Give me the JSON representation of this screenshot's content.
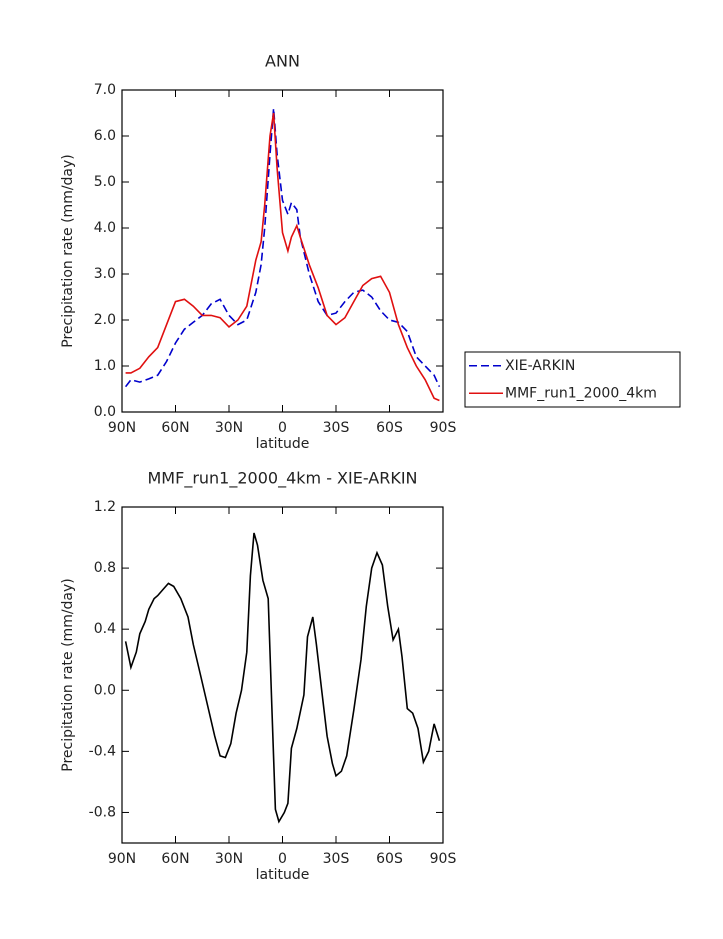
{
  "chart_data": [
    {
      "type": "line",
      "title": "ANN",
      "xlabel": "latitude",
      "ylabel": "Precipitation rate (mm/day)",
      "x": [
        88,
        85,
        80,
        75,
        70,
        65,
        60,
        55,
        50,
        45,
        40,
        35,
        30,
        25,
        20,
        15,
        12,
        10,
        7,
        5,
        3,
        0,
        -3,
        -5,
        -8,
        -10,
        -15,
        -20,
        -25,
        -30,
        -35,
        -40,
        -45,
        -50,
        -55,
        -60,
        -65,
        -70,
        -75,
        -80,
        -85,
        -88
      ],
      "series": [
        {
          "name": "XIE-ARKIN",
          "color": "#0000cc",
          "dash": true,
          "values": [
            0.55,
            0.7,
            0.65,
            0.72,
            0.8,
            1.1,
            1.5,
            1.8,
            1.95,
            2.1,
            2.35,
            2.45,
            2.1,
            1.9,
            2.0,
            2.6,
            3.2,
            4.0,
            5.6,
            6.6,
            5.6,
            4.6,
            4.3,
            4.55,
            4.4,
            3.8,
            3.0,
            2.4,
            2.1,
            2.15,
            2.4,
            2.6,
            2.65,
            2.5,
            2.2,
            2.0,
            1.95,
            1.75,
            1.2,
            1.0,
            0.8,
            0.55
          ]
        },
        {
          "name": "MMF_run1_2000_4km",
          "color": "#e01010",
          "dash": false,
          "values": [
            0.85,
            0.85,
            0.95,
            1.2,
            1.4,
            1.9,
            2.4,
            2.45,
            2.3,
            2.1,
            2.1,
            2.05,
            1.85,
            2.0,
            2.3,
            3.3,
            3.7,
            4.5,
            6.0,
            6.5,
            5.3,
            3.9,
            3.5,
            3.8,
            4.05,
            3.8,
            3.2,
            2.7,
            2.1,
            1.9,
            2.05,
            2.4,
            2.75,
            2.9,
            2.95,
            2.6,
            1.9,
            1.4,
            1.0,
            0.7,
            0.3,
            0.25
          ]
        }
      ],
      "xlim": [
        90,
        -90
      ],
      "xticks": [
        {
          "value": 90,
          "label": "90N"
        },
        {
          "value": 60,
          "label": "60N"
        },
        {
          "value": 30,
          "label": "30N"
        },
        0,
        {
          "value": -30,
          "label": "30S"
        },
        {
          "value": -60,
          "label": "60S"
        },
        {
          "value": -90,
          "label": "90S"
        }
      ],
      "ylim": [
        0,
        7
      ],
      "yticks": [
        {
          "value": 0,
          "label": "0.0"
        },
        {
          "value": 1,
          "label": "1.0"
        },
        {
          "value": 2,
          "label": "2.0"
        },
        {
          "value": 3,
          "label": "3.0"
        },
        {
          "value": 4,
          "label": "4.0"
        },
        {
          "value": 5,
          "label": "5.0"
        },
        {
          "value": 6,
          "label": "6.0"
        },
        {
          "value": 7,
          "label": "7.0"
        }
      ],
      "legend": "right"
    },
    {
      "type": "line",
      "title": "MMF_run1_2000_4km - XIE-ARKIN",
      "xlabel": "latitude",
      "ylabel": "Precipitation rate (mm/day)",
      "x": [
        88,
        85,
        82,
        80,
        77,
        75,
        72,
        70,
        67,
        64,
        61,
        57,
        53,
        50,
        46,
        42,
        38,
        35,
        32,
        29,
        26,
        23,
        20,
        18,
        16,
        14,
        11,
        8,
        6,
        4,
        2,
        -1,
        -3,
        -5,
        -8,
        -12,
        -14,
        -17,
        -19,
        -22,
        -25,
        -28,
        -30,
        -33,
        -36,
        -40,
        -44,
        -47,
        -50,
        -53,
        -56,
        -59,
        -62,
        -65,
        -67,
        -70,
        -73,
        -76,
        -79,
        -82,
        -85,
        -88
      ],
      "series": [
        {
          "name": "MMF_run1_2000_4km - XIE-ARKIN",
          "color": "#000000",
          "dash": false,
          "values": [
            0.32,
            0.15,
            0.25,
            0.37,
            0.45,
            0.53,
            0.6,
            0.62,
            0.66,
            0.7,
            0.68,
            0.6,
            0.48,
            0.3,
            0.1,
            -0.1,
            -0.3,
            -0.43,
            -0.44,
            -0.35,
            -0.15,
            0.0,
            0.25,
            0.75,
            1.03,
            0.95,
            0.72,
            0.6,
            -0.1,
            -0.78,
            -0.86,
            -0.8,
            -0.74,
            -0.38,
            -0.25,
            -0.03,
            0.35,
            0.48,
            0.3,
            0.0,
            -0.3,
            -0.48,
            -0.56,
            -0.53,
            -0.43,
            -0.13,
            0.2,
            0.55,
            0.8,
            0.9,
            0.82,
            0.55,
            0.33,
            0.4,
            0.22,
            -0.12,
            -0.15,
            -0.25,
            -0.47,
            -0.4,
            -0.22,
            -0.33
          ]
        }
      ],
      "xlim": [
        90,
        -90
      ],
      "xticks": [
        {
          "value": 90,
          "label": "90N"
        },
        {
          "value": 60,
          "label": "60N"
        },
        {
          "value": 30,
          "label": "30N"
        },
        0,
        {
          "value": -30,
          "label": "30S"
        },
        {
          "value": -60,
          "label": "60S"
        },
        {
          "value": -90,
          "label": "90S"
        }
      ],
      "ylim": [
        -1.0,
        1.2
      ],
      "yticks": [
        {
          "value": -0.8,
          "label": "-0.8"
        },
        {
          "value": -0.4,
          "label": "-0.4"
        },
        {
          "value": 0,
          "label": "0.0"
        },
        0.4,
        0.8,
        1.2
      ]
    }
  ]
}
